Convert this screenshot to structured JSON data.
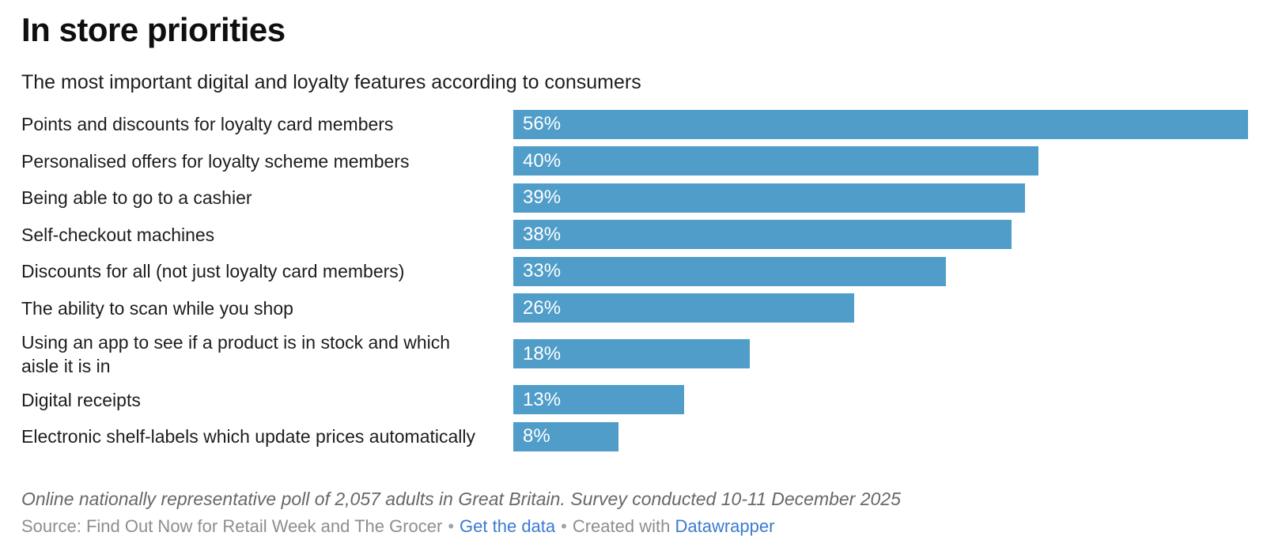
{
  "chart_data": {
    "type": "bar",
    "title": "In store priorities",
    "subtitle": "The most important digital and loyalty features according to consumers",
    "categories": [
      "Points and discounts for loyalty card members",
      "Personalised offers for loyalty scheme members",
      "Being able to go to a cashier",
      "Self-checkout machines",
      "Discounts for all (not just loyalty card members)",
      "The ability to scan while you shop",
      "Using an app to see if a product is in stock and which aisle it is in",
      "Digital receipts",
      "Electronic shelf-labels which update prices automatically"
    ],
    "values": [
      56,
      40,
      39,
      38,
      33,
      26,
      18,
      13,
      8
    ],
    "display_values": [
      "56%",
      "40%",
      "39%",
      "38%",
      "33%",
      "26%",
      "18%",
      "13%",
      "8%"
    ],
    "value_suffix": "%",
    "xlim": [
      0,
      56
    ],
    "xmax": 56,
    "orientation": "horizontal",
    "grid": false,
    "legend": false,
    "bar_color": "#4f9dc8",
    "bar_label_color": "#ffffff"
  },
  "footer": {
    "note": "Online nationally representative poll of 2,057 adults in Great Britain. Survey conducted 10-11 December 2025",
    "source_prefix": "Source:",
    "source_name": "Find Out Now for Retail Week and The Grocer",
    "separator": "•",
    "get_data_label": "Get the data",
    "created_with_label": "Created with",
    "datawrapper_label": "Datawrapper"
  },
  "colors": {
    "bar": "#4f9dc8",
    "link": "#3b7bce",
    "title_text": "#0f0f0f",
    "body_text": "#1d1d1d",
    "note_text": "#686868",
    "source_text": "#8e8e8e"
  }
}
